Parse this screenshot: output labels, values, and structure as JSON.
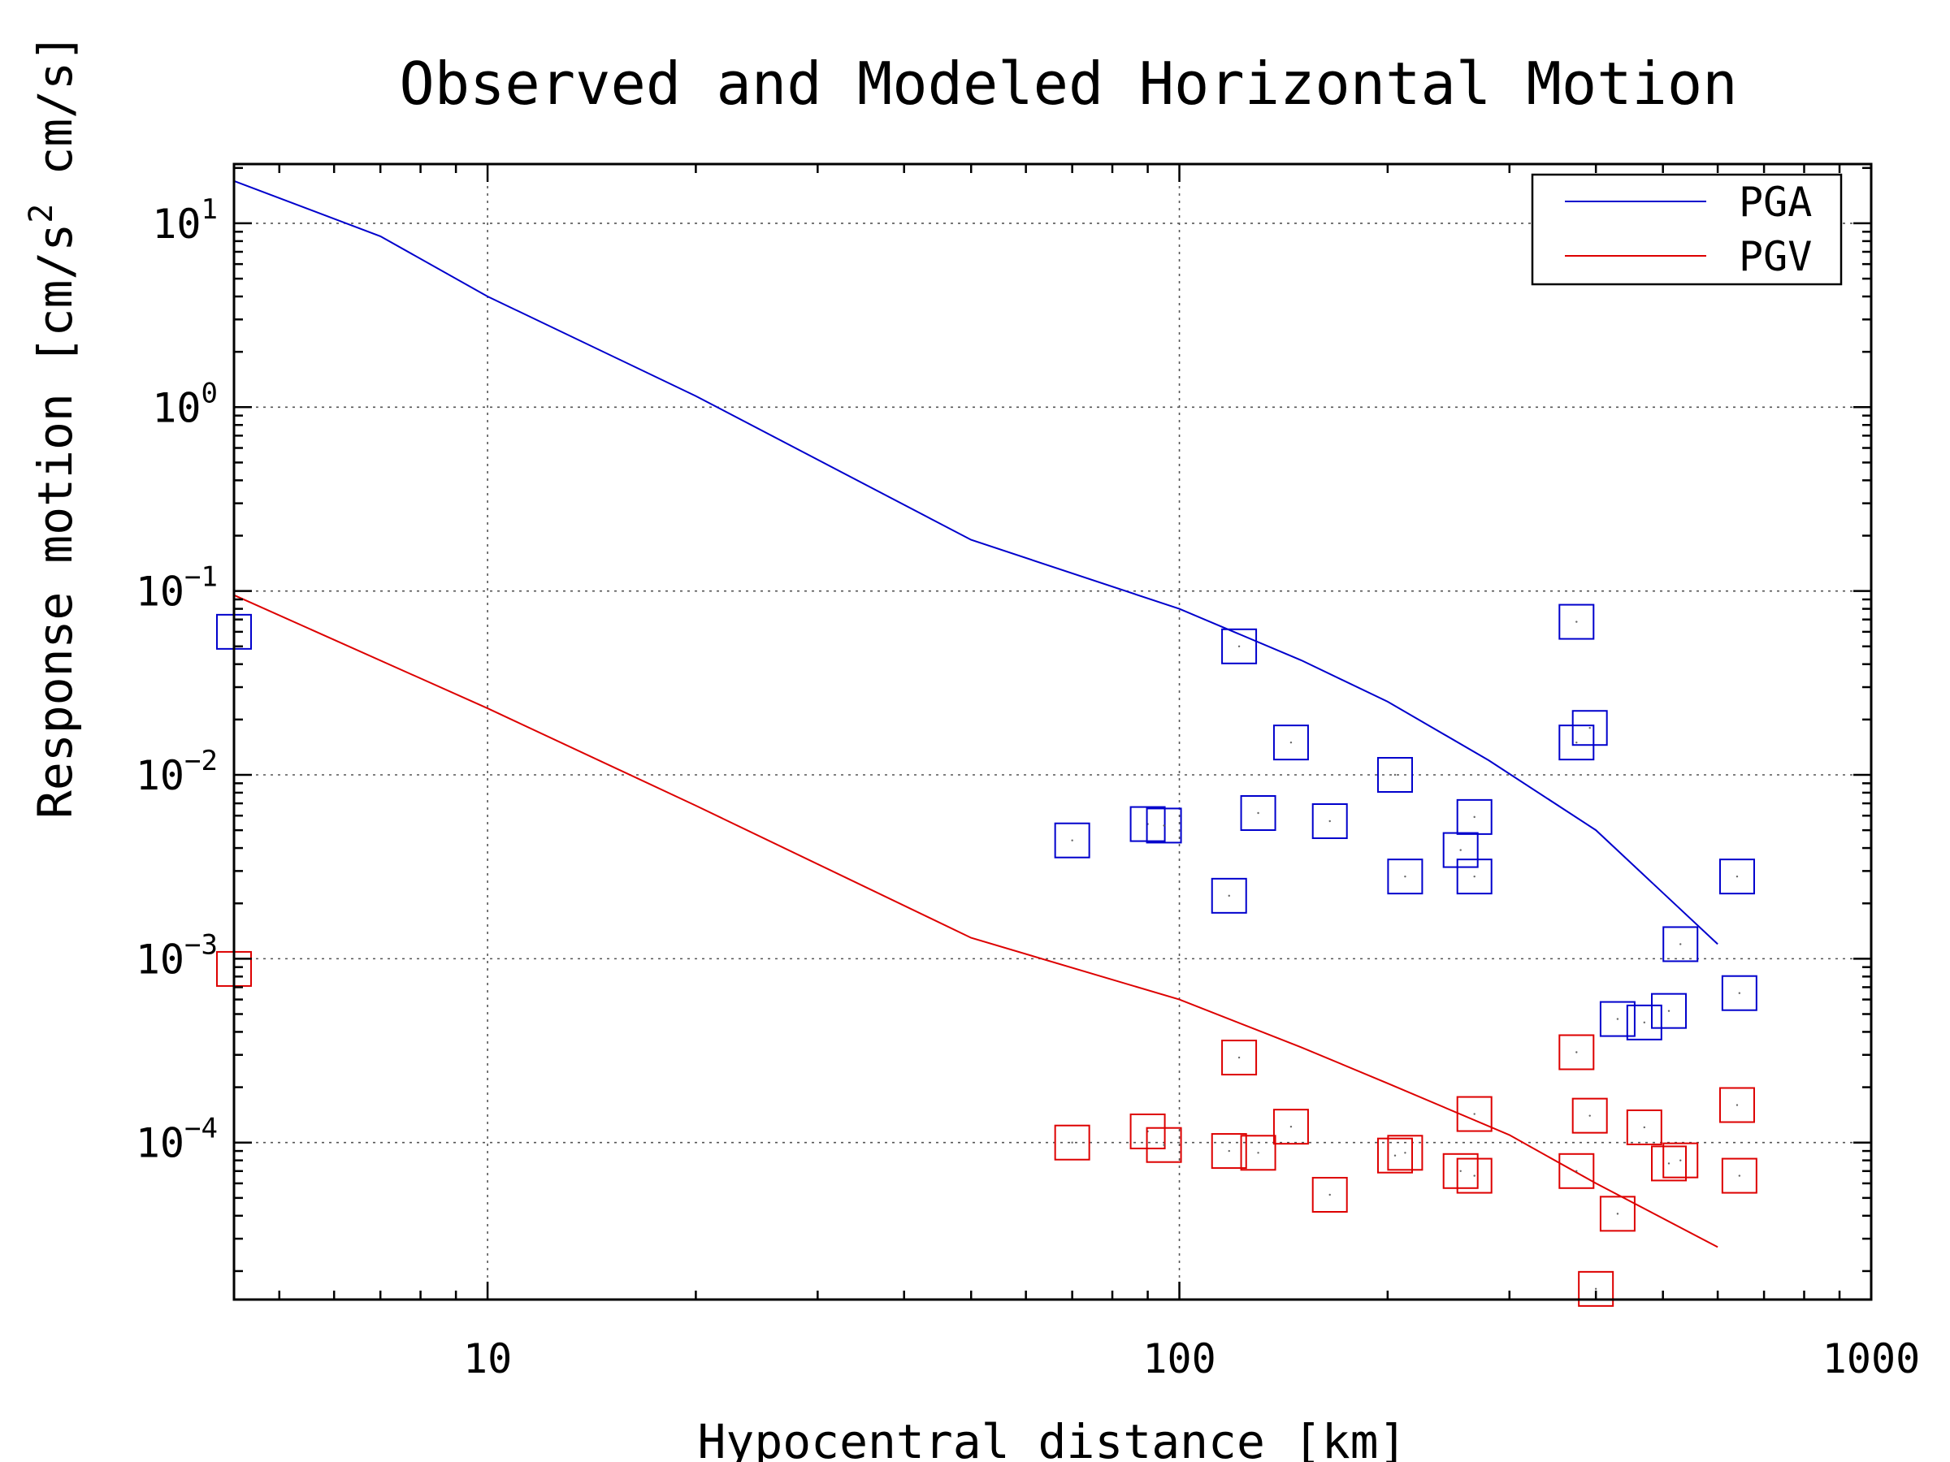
{
  "chart_data": {
    "type": "scatter",
    "title": "Observed and Modeled Horizontal Motion",
    "xlabel": "Hypocentral distance [km]",
    "ylabel_parts": [
      "Response motion  [cm/s",
      "2",
      "  cm/s]"
    ],
    "x_scale": "log",
    "y_scale": "log",
    "xlim": [
      4.3,
      1000
    ],
    "ylim": [
      1.4e-05,
      21
    ],
    "grid": true,
    "legend_position": "top-right",
    "x_ticks": [
      {
        "value": 10,
        "label": "10"
      },
      {
        "value": 100,
        "label": "100"
      },
      {
        "value": 1000,
        "label": "1000"
      }
    ],
    "y_ticks": [
      {
        "value": 10,
        "base": "10",
        "exp": "1"
      },
      {
        "value": 1,
        "base": "10",
        "exp": "0"
      },
      {
        "value": 0.1,
        "base": "10",
        "exp": "−1"
      },
      {
        "value": 0.01,
        "base": "10",
        "exp": "−2"
      },
      {
        "value": 0.001,
        "base": "10",
        "exp": "−3"
      },
      {
        "value": 0.0001,
        "base": "10",
        "exp": "−4"
      }
    ],
    "series": [
      {
        "name": "PGA",
        "color": "#0000cc",
        "line": [
          [
            4.3,
            17
          ],
          [
            7,
            8.5
          ],
          [
            10,
            4
          ],
          [
            20,
            1.15
          ],
          [
            50,
            0.19
          ],
          [
            100,
            0.08
          ],
          [
            150,
            0.042
          ],
          [
            200,
            0.025
          ],
          [
            280,
            0.012
          ],
          [
            400,
            0.005
          ],
          [
            600,
            0.0012
          ]
        ],
        "points": [
          [
            4.3,
            0.06
          ],
          [
            70,
            0.0044
          ],
          [
            90,
            0.0054
          ],
          [
            95,
            0.0053
          ],
          [
            118,
            0.0022
          ],
          [
            122,
            0.05
          ],
          [
            130,
            0.0062
          ],
          [
            145,
            0.015
          ],
          [
            165,
            0.0056
          ],
          [
            205,
            0.01
          ],
          [
            212,
            0.0028
          ],
          [
            255,
            0.0039
          ],
          [
            267,
            0.0059
          ],
          [
            267,
            0.0028
          ],
          [
            375,
            0.068
          ],
          [
            375,
            0.015
          ],
          [
            392,
            0.018
          ],
          [
            430,
            0.00047
          ],
          [
            470,
            0.00045
          ],
          [
            510,
            0.00052
          ],
          [
            530,
            0.0012
          ],
          [
            640,
            0.0028
          ],
          [
            645,
            0.00065
          ]
        ]
      },
      {
        "name": "PGV",
        "color": "#dd0000",
        "line": [
          [
            4.3,
            0.095
          ],
          [
            10,
            0.023
          ],
          [
            20,
            0.0068
          ],
          [
            50,
            0.0013
          ],
          [
            100,
            0.0006
          ],
          [
            150,
            0.00033
          ],
          [
            200,
            0.00021
          ],
          [
            300,
            0.00011
          ],
          [
            400,
            6e-05
          ],
          [
            600,
            2.7e-05
          ]
        ],
        "points": [
          [
            4.3,
            0.00088
          ],
          [
            70,
            0.0001
          ],
          [
            90,
            0.000115
          ],
          [
            95,
            9.7e-05
          ],
          [
            118,
            9e-05
          ],
          [
            122,
            0.00029
          ],
          [
            130,
            8.8e-05
          ],
          [
            145,
            0.000122
          ],
          [
            165,
            5.2e-05
          ],
          [
            205,
            8.5e-05
          ],
          [
            212,
            8.8e-05
          ],
          [
            255,
            7e-05
          ],
          [
            267,
            0.000143
          ],
          [
            267,
            6.6e-05
          ],
          [
            375,
            0.00031
          ],
          [
            375,
            7e-05
          ],
          [
            392,
            0.00014
          ],
          [
            400,
            1.6e-05
          ],
          [
            430,
            4.1e-05
          ],
          [
            470,
            0.000121
          ],
          [
            510,
            7.7e-05
          ],
          [
            530,
            8e-05
          ],
          [
            640,
            0.00016
          ],
          [
            645,
            6.6e-05
          ]
        ]
      }
    ]
  }
}
